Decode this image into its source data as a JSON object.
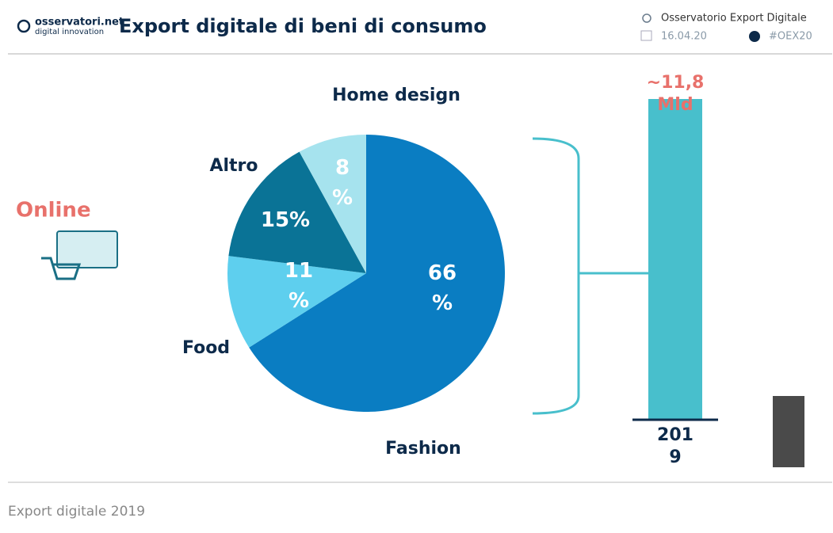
{
  "header": {
    "logo": "osservatori.net",
    "logo_sub": "digital innovation",
    "title": "Export digitale di beni di consumo",
    "source": "Osservatorio Export Digitale",
    "date": "16.04.20",
    "hashtag": "#OEX20"
  },
  "side_label": "Online",
  "footer": "Export digitale 2019",
  "chart_data": [
    {
      "type": "pie",
      "categories": [
        "Fashion",
        "Food",
        "Altro",
        "Home design"
      ],
      "values": [
        66,
        11,
        15,
        8
      ],
      "value_labels": [
        "66 %",
        "11 %",
        "15%",
        "8 %"
      ],
      "colors": [
        "#0a7dc2",
        "#5ecfee",
        "#0a7396",
        "#a6e3ee"
      ]
    },
    {
      "type": "bar",
      "categories": [
        "2019"
      ],
      "category_labels": [
        "201 9"
      ],
      "values": [
        11.8
      ],
      "value_labels": [
        "~11,8 Mld"
      ],
      "color": "#48bfcc"
    }
  ]
}
